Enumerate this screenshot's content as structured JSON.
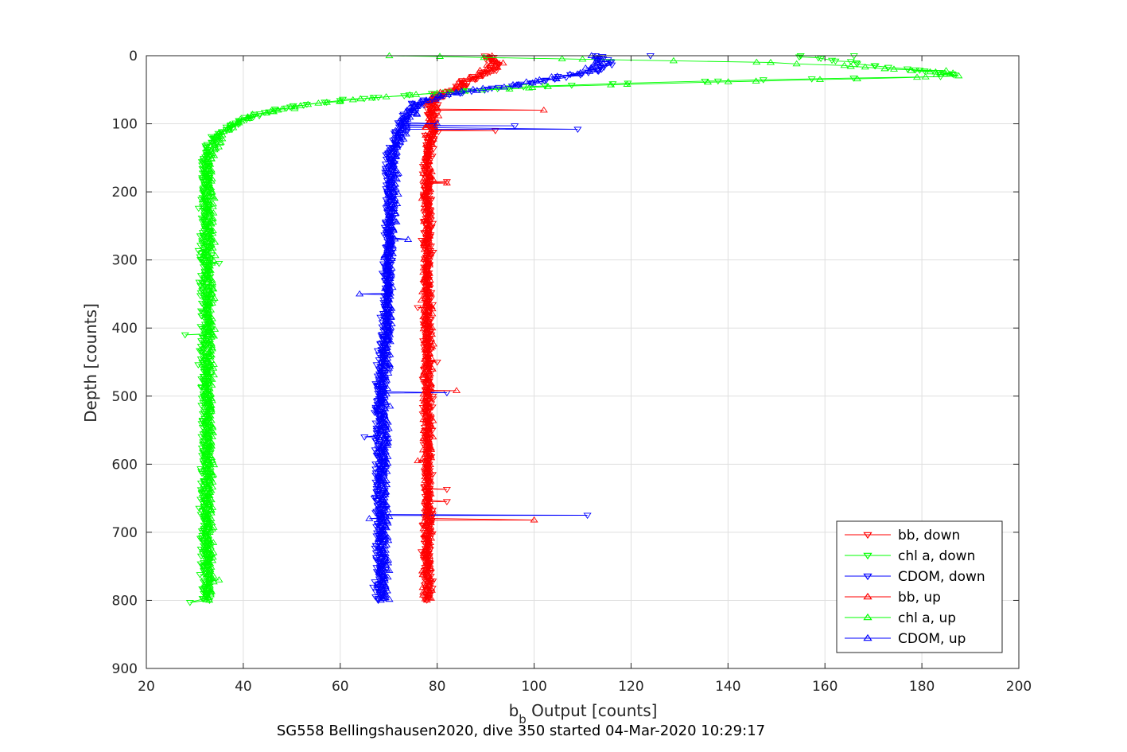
{
  "chart_data": {
    "type": "scatter",
    "xlabel_main": "b",
    "xlabel_sub": "b",
    "xlabel_rest": " Output [counts]",
    "ylabel": "Depth [counts]",
    "caption": "SG558 Bellingshausen2020, dive 350 started 04-Mar-2020 10:29:17",
    "xlim": [
      20,
      200
    ],
    "ylim": [
      0,
      900
    ],
    "y_reversed": true,
    "xticks": [
      "20",
      "40",
      "60",
      "80",
      "100",
      "120",
      "140",
      "160",
      "180",
      "200"
    ],
    "yticks": [
      "0",
      "100",
      "200",
      "300",
      "400",
      "500",
      "600",
      "700",
      "800",
      "900"
    ],
    "grid": true,
    "legend_position": "bottom-right",
    "colors": {
      "red": "#ff0000",
      "green": "#00ff00",
      "blue": "#0000ff"
    },
    "series": [
      {
        "name": "bb, down",
        "color": "#ff0000",
        "marker": "triangle-down",
        "profile": [
          [
            0,
            90
          ],
          [
            10,
            92
          ],
          [
            20,
            92
          ],
          [
            30,
            89
          ],
          [
            40,
            86
          ],
          [
            50,
            84
          ],
          [
            60,
            80
          ],
          [
            70,
            79
          ],
          [
            80,
            79
          ],
          [
            100,
            79
          ],
          [
            150,
            78
          ],
          [
            200,
            78
          ],
          [
            300,
            78
          ],
          [
            400,
            78
          ],
          [
            500,
            78
          ],
          [
            600,
            78
          ],
          [
            700,
            78
          ],
          [
            800,
            78
          ]
        ],
        "outliers": [
          [
            92,
            110
          ],
          [
            82,
            185
          ],
          [
            76,
            370
          ],
          [
            80,
            450
          ],
          [
            79,
            550
          ],
          [
            82,
            637
          ],
          [
            82,
            655
          ],
          [
            77,
            690
          ]
        ]
      },
      {
        "name": "chl a, down",
        "color": "#00ff00",
        "marker": "triangle-down",
        "profile": [
          [
            0,
            155
          ],
          [
            5,
            160
          ],
          [
            15,
            170
          ],
          [
            25,
            185
          ],
          [
            30,
            188
          ],
          [
            35,
            150
          ],
          [
            40,
            120
          ],
          [
            45,
            100
          ],
          [
            55,
            80
          ],
          [
            65,
            60
          ],
          [
            75,
            50
          ],
          [
            85,
            43
          ],
          [
            100,
            38
          ],
          [
            120,
            34
          ],
          [
            150,
            32
          ],
          [
            200,
            32
          ],
          [
            300,
            32
          ],
          [
            400,
            32
          ],
          [
            500,
            32
          ],
          [
            600,
            32
          ],
          [
            700,
            32
          ],
          [
            800,
            32
          ]
        ],
        "outliers": [
          [
            166,
            0
          ],
          [
            29,
            803
          ],
          [
            35,
            305
          ],
          [
            28,
            410
          ]
        ]
      },
      {
        "name": "CDOM, down",
        "color": "#0000ff",
        "marker": "triangle-down",
        "profile": [
          [
            0,
            113
          ],
          [
            10,
            116
          ],
          [
            20,
            113
          ],
          [
            30,
            107
          ],
          [
            40,
            100
          ],
          [
            50,
            90
          ],
          [
            60,
            80
          ],
          [
            70,
            76
          ],
          [
            80,
            75
          ],
          [
            100,
            73
          ],
          [
            150,
            70
          ],
          [
            200,
            70
          ],
          [
            300,
            70
          ],
          [
            400,
            69
          ],
          [
            500,
            68
          ],
          [
            600,
            68
          ],
          [
            700,
            68
          ],
          [
            800,
            68
          ]
        ],
        "outliers": [
          [
            124,
            0
          ],
          [
            109,
            108
          ],
          [
            96,
            103
          ],
          [
            82,
            495
          ],
          [
            111,
            675
          ],
          [
            65,
            560
          ]
        ]
      },
      {
        "name": "bb, up",
        "color": "#ff0000",
        "marker": "triangle-up",
        "profile": [
          [
            0,
            92
          ],
          [
            10,
            92
          ],
          [
            20,
            91
          ],
          [
            30,
            88
          ],
          [
            40,
            85
          ],
          [
            50,
            83
          ],
          [
            60,
            80
          ],
          [
            70,
            79
          ],
          [
            80,
            79
          ],
          [
            100,
            79
          ],
          [
            150,
            78
          ],
          [
            200,
            78
          ],
          [
            300,
            78
          ],
          [
            400,
            78
          ],
          [
            500,
            78
          ],
          [
            600,
            78
          ],
          [
            700,
            78
          ],
          [
            800,
            78
          ]
        ],
        "outliers": [
          [
            102,
            80
          ],
          [
            84,
            492
          ],
          [
            100,
            682
          ],
          [
            76,
            595
          ],
          [
            82,
            187
          ]
        ]
      },
      {
        "name": "chl a, up",
        "color": "#00ff00",
        "marker": "triangle-up",
        "profile": [
          [
            0,
            70
          ],
          [
            5,
            110
          ],
          [
            10,
            150
          ],
          [
            15,
            165
          ],
          [
            20,
            175
          ],
          [
            25,
            185
          ],
          [
            30,
            188
          ],
          [
            35,
            160
          ],
          [
            40,
            130
          ],
          [
            45,
            105
          ],
          [
            50,
            90
          ],
          [
            60,
            70
          ],
          [
            70,
            55
          ],
          [
            80,
            47
          ],
          [
            90,
            41
          ],
          [
            100,
            38
          ],
          [
            120,
            35
          ],
          [
            150,
            33
          ],
          [
            200,
            33
          ],
          [
            300,
            33
          ],
          [
            400,
            33
          ],
          [
            500,
            33
          ],
          [
            600,
            33
          ],
          [
            700,
            33
          ],
          [
            800,
            33
          ]
        ],
        "outliers": [
          [
            185,
            22
          ],
          [
            183,
            28
          ],
          [
            35,
            770
          ]
        ]
      },
      {
        "name": "CDOM, up",
        "color": "#0000ff",
        "marker": "triangle-up",
        "profile": [
          [
            0,
            112
          ],
          [
            10,
            114
          ],
          [
            20,
            112
          ],
          [
            30,
            106
          ],
          [
            40,
            99
          ],
          [
            50,
            88
          ],
          [
            60,
            80
          ],
          [
            70,
            76
          ],
          [
            80,
            75
          ],
          [
            100,
            73
          ],
          [
            150,
            71
          ],
          [
            200,
            71
          ],
          [
            300,
            70
          ],
          [
            400,
            70
          ],
          [
            500,
            69
          ],
          [
            600,
            69
          ],
          [
            700,
            69
          ],
          [
            800,
            69
          ]
        ],
        "outliers": [
          [
            80,
            100
          ],
          [
            66,
            680
          ],
          [
            74,
            270
          ],
          [
            64,
            350
          ]
        ]
      }
    ]
  }
}
